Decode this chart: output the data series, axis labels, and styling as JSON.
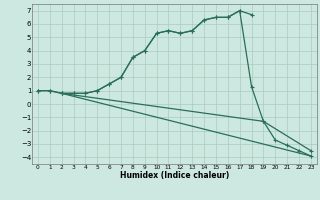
{
  "xlabel": "Humidex (Indice chaleur)",
  "bg_color": "#cce8e0",
  "grid_color": "#aaccbb",
  "line_color": "#2a6e5a",
  "xlim": [
    -0.5,
    23.5
  ],
  "ylim": [
    -4.5,
    7.5
  ],
  "xticks": [
    0,
    1,
    2,
    3,
    4,
    5,
    6,
    7,
    8,
    9,
    10,
    11,
    12,
    13,
    14,
    15,
    16,
    17,
    18,
    19,
    20,
    21,
    22,
    23
  ],
  "yticks": [
    -4,
    -3,
    -2,
    -1,
    0,
    1,
    2,
    3,
    4,
    5,
    6,
    7
  ],
  "s1x": [
    0,
    1,
    2,
    3,
    4,
    5,
    6,
    7,
    8,
    9,
    10,
    11,
    12,
    13,
    14,
    15,
    16,
    17,
    18
  ],
  "s1y": [
    1,
    1,
    0.8,
    0.8,
    0.8,
    1.0,
    1.5,
    2.0,
    3.5,
    4.0,
    5.3,
    5.5,
    5.3,
    5.5,
    6.3,
    6.5,
    6.5,
    7.0,
    6.7
  ],
  "s2x": [
    0,
    1,
    2,
    3,
    4,
    5,
    6,
    7,
    8,
    9,
    10,
    11,
    12,
    13,
    14,
    15,
    16,
    17,
    18,
    19,
    20,
    21,
    22,
    23
  ],
  "s2y": [
    1,
    1,
    0.8,
    0.8,
    0.8,
    1.0,
    1.5,
    2.0,
    3.5,
    4.0,
    5.3,
    5.5,
    5.3,
    5.5,
    6.3,
    6.5,
    6.5,
    7.0,
    1.3,
    -1.3,
    -2.7,
    -3.1,
    -3.5,
    -3.9
  ],
  "s3x": [
    2,
    23
  ],
  "s3y": [
    0.8,
    -3.9
  ],
  "s4x": [
    2,
    19,
    23
  ],
  "s4y": [
    0.8,
    -1.3,
    -3.5
  ],
  "lw": 0.9,
  "ms": 3.0
}
